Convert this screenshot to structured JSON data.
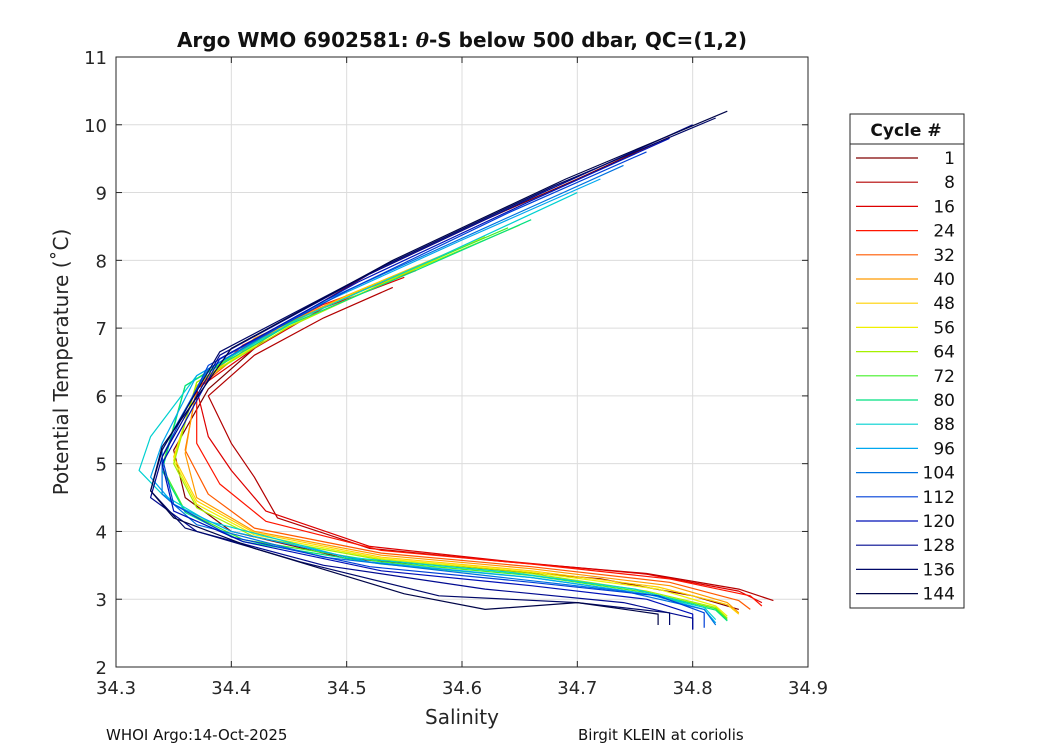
{
  "chart_data": {
    "type": "line",
    "title": "Argo WMO 6902581: θ-S below 500 dbar,  QC=(1,2)",
    "title_prefix": "Argo WMO 6902581: ",
    "title_theta": "θ",
    "title_suffix": "-S below 500 dbar,  QC=(1,2)",
    "xlabel": "Salinity",
    "ylabel": "Potential Temperature (˚C)",
    "xlim": [
      34.3,
      34.9
    ],
    "ylim": [
      2,
      11
    ],
    "xticks": [
      34.3,
      34.4,
      34.5,
      34.6,
      34.7,
      34.8,
      34.9
    ],
    "xtick_labels": [
      "34.3",
      "34.4",
      "34.5",
      "34.6",
      "34.7",
      "34.8",
      "34.9"
    ],
    "yticks": [
      2,
      3,
      4,
      5,
      6,
      7,
      8,
      9,
      10,
      11
    ],
    "ytick_labels": [
      "2",
      "3",
      "4",
      "5",
      "6",
      "7",
      "8",
      "9",
      "10",
      "11"
    ],
    "grid": true,
    "legend_title": "Cycle #",
    "legend_placement": "outside-right",
    "series": [
      {
        "name": "1",
        "color": "#800000",
        "points": [
          [
            34.78,
            9.82
          ],
          [
            34.7,
            9.2
          ],
          [
            34.62,
            8.6
          ],
          [
            34.52,
            7.8
          ],
          [
            34.44,
            7.0
          ],
          [
            34.38,
            6.1
          ],
          [
            34.35,
            5.2
          ],
          [
            34.36,
            4.5
          ],
          [
            34.4,
            4.0
          ],
          [
            34.5,
            3.6
          ],
          [
            34.62,
            3.45
          ],
          [
            34.72,
            3.3
          ],
          [
            34.8,
            3.05
          ],
          [
            34.84,
            2.85
          ]
        ]
      },
      {
        "name": "8",
        "color": "#b30000",
        "points": [
          [
            34.54,
            7.6
          ],
          [
            34.48,
            7.15
          ],
          [
            34.42,
            6.6
          ],
          [
            34.38,
            6.0
          ],
          [
            34.4,
            5.3
          ],
          [
            34.42,
            4.8
          ],
          [
            34.44,
            4.2
          ],
          [
            34.52,
            3.75
          ],
          [
            34.64,
            3.55
          ],
          [
            34.76,
            3.38
          ],
          [
            34.84,
            3.15
          ],
          [
            34.87,
            2.98
          ]
        ]
      },
      {
        "name": "16",
        "color": "#dd0000",
        "points": [
          [
            34.55,
            7.75
          ],
          [
            34.48,
            7.3
          ],
          [
            34.42,
            6.7
          ],
          [
            34.37,
            6.1
          ],
          [
            34.38,
            5.4
          ],
          [
            34.4,
            4.9
          ],
          [
            34.43,
            4.3
          ],
          [
            34.52,
            3.78
          ],
          [
            34.64,
            3.56
          ],
          [
            34.76,
            3.37
          ],
          [
            34.84,
            3.12
          ],
          [
            34.86,
            2.95
          ]
        ]
      },
      {
        "name": "24",
        "color": "#ff1500",
        "points": [
          [
            34.56,
            7.85
          ],
          [
            34.48,
            7.35
          ],
          [
            34.41,
            6.75
          ],
          [
            34.37,
            6.1
          ],
          [
            34.37,
            5.3
          ],
          [
            34.39,
            4.7
          ],
          [
            34.43,
            4.15
          ],
          [
            34.53,
            3.72
          ],
          [
            34.66,
            3.52
          ],
          [
            34.78,
            3.3
          ],
          [
            34.85,
            3.05
          ],
          [
            34.86,
            2.9
          ]
        ]
      },
      {
        "name": "32",
        "color": "#ff5a00",
        "points": [
          [
            34.57,
            7.95
          ],
          [
            34.49,
            7.4
          ],
          [
            34.42,
            6.8
          ],
          [
            34.37,
            6.1
          ],
          [
            34.36,
            5.2
          ],
          [
            34.38,
            4.55
          ],
          [
            34.42,
            4.05
          ],
          [
            34.53,
            3.68
          ],
          [
            34.66,
            3.48
          ],
          [
            34.78,
            3.25
          ],
          [
            34.84,
            2.98
          ],
          [
            34.85,
            2.85
          ]
        ]
      },
      {
        "name": "40",
        "color": "#ff9a00",
        "points": [
          [
            34.58,
            8.05
          ],
          [
            34.5,
            7.48
          ],
          [
            34.42,
            6.85
          ],
          [
            34.37,
            6.15
          ],
          [
            34.36,
            5.15
          ],
          [
            34.37,
            4.5
          ],
          [
            34.42,
            4.0
          ],
          [
            34.53,
            3.65
          ],
          [
            34.66,
            3.45
          ],
          [
            34.78,
            3.2
          ],
          [
            34.83,
            2.95
          ],
          [
            34.84,
            2.8
          ]
        ]
      },
      {
        "name": "48",
        "color": "#ffd000",
        "points": [
          [
            34.6,
            8.2
          ],
          [
            34.51,
            7.55
          ],
          [
            34.43,
            6.9
          ],
          [
            34.37,
            6.15
          ],
          [
            34.35,
            5.1
          ],
          [
            34.37,
            4.45
          ],
          [
            34.42,
            3.98
          ],
          [
            34.53,
            3.62
          ],
          [
            34.66,
            3.42
          ],
          [
            34.77,
            3.18
          ],
          [
            34.83,
            2.92
          ],
          [
            34.84,
            2.78
          ]
        ]
      },
      {
        "name": "56",
        "color": "#f0f000",
        "points": [
          [
            34.62,
            8.35
          ],
          [
            34.53,
            7.65
          ],
          [
            34.44,
            6.95
          ],
          [
            34.37,
            6.2
          ],
          [
            34.35,
            5.05
          ],
          [
            34.37,
            4.4
          ],
          [
            34.42,
            3.95
          ],
          [
            34.53,
            3.6
          ],
          [
            34.66,
            3.4
          ],
          [
            34.77,
            3.15
          ],
          [
            34.82,
            2.9
          ],
          [
            34.83,
            2.75
          ]
        ]
      },
      {
        "name": "64",
        "color": "#a6f000",
        "points": [
          [
            34.65,
            8.52
          ],
          [
            34.55,
            7.8
          ],
          [
            34.45,
            7.02
          ],
          [
            34.37,
            6.2
          ],
          [
            34.35,
            5.0
          ],
          [
            34.37,
            4.35
          ],
          [
            34.42,
            3.92
          ],
          [
            34.53,
            3.58
          ],
          [
            34.66,
            3.38
          ],
          [
            34.76,
            3.12
          ],
          [
            34.82,
            2.88
          ],
          [
            34.83,
            2.72
          ]
        ]
      },
      {
        "name": "72",
        "color": "#44f028",
        "points": [
          [
            34.64,
            8.48
          ],
          [
            34.54,
            7.75
          ],
          [
            34.44,
            7.0
          ],
          [
            34.36,
            6.15
          ],
          [
            34.34,
            4.95
          ],
          [
            34.36,
            4.3
          ],
          [
            34.41,
            3.88
          ],
          [
            34.53,
            3.55
          ],
          [
            34.66,
            3.35
          ],
          [
            34.76,
            3.1
          ],
          [
            34.82,
            2.86
          ],
          [
            34.83,
            2.7
          ]
        ]
      },
      {
        "name": "80",
        "color": "#00e080",
        "points": [
          [
            34.66,
            8.6
          ],
          [
            34.56,
            7.85
          ],
          [
            34.45,
            7.05
          ],
          [
            34.36,
            6.15
          ],
          [
            34.34,
            4.9
          ],
          [
            34.36,
            4.28
          ],
          [
            34.41,
            3.85
          ],
          [
            34.53,
            3.52
          ],
          [
            34.66,
            3.32
          ],
          [
            34.76,
            3.08
          ],
          [
            34.82,
            2.84
          ],
          [
            34.83,
            2.68
          ]
        ]
      },
      {
        "name": "88",
        "color": "#00d0d0",
        "points": [
          [
            34.7,
            9.0
          ],
          [
            34.58,
            8.05
          ],
          [
            34.46,
            7.15
          ],
          [
            34.37,
            6.3
          ],
          [
            34.33,
            5.4
          ],
          [
            34.32,
            4.9
          ],
          [
            34.34,
            4.55
          ],
          [
            34.38,
            4.15
          ],
          [
            34.5,
            3.62
          ],
          [
            34.64,
            3.4
          ],
          [
            34.75,
            3.15
          ],
          [
            34.81,
            2.88
          ],
          [
            34.82,
            2.7
          ]
        ]
      },
      {
        "name": "96",
        "color": "#00a8f0",
        "points": [
          [
            34.72,
            9.2
          ],
          [
            34.6,
            8.3
          ],
          [
            34.47,
            7.3
          ],
          [
            34.37,
            6.3
          ],
          [
            34.34,
            5.3
          ],
          [
            34.33,
            4.8
          ],
          [
            34.35,
            4.4
          ],
          [
            34.4,
            4.0
          ],
          [
            34.52,
            3.55
          ],
          [
            34.66,
            3.32
          ],
          [
            34.76,
            3.08
          ],
          [
            34.81,
            2.85
          ],
          [
            34.82,
            2.65
          ]
        ]
      },
      {
        "name": "104",
        "color": "#0072e0",
        "points": [
          [
            34.74,
            9.4
          ],
          [
            34.62,
            8.48
          ],
          [
            34.48,
            7.4
          ],
          [
            34.38,
            6.4
          ],
          [
            34.34,
            5.2
          ],
          [
            34.34,
            4.55
          ],
          [
            34.37,
            4.1
          ],
          [
            34.48,
            3.62
          ],
          [
            34.62,
            3.35
          ],
          [
            34.74,
            3.12
          ],
          [
            34.81,
            2.85
          ],
          [
            34.82,
            2.62
          ]
        ]
      },
      {
        "name": "112",
        "color": "#0040d8",
        "points": [
          [
            34.76,
            9.6
          ],
          [
            34.64,
            8.7
          ],
          [
            34.5,
            7.55
          ],
          [
            34.38,
            6.45
          ],
          [
            34.34,
            5.1
          ],
          [
            34.35,
            4.4
          ],
          [
            34.4,
            3.92
          ],
          [
            34.52,
            3.48
          ],
          [
            34.66,
            3.25
          ],
          [
            34.77,
            3.05
          ],
          [
            34.81,
            2.8
          ],
          [
            34.81,
            2.58
          ]
        ]
      },
      {
        "name": "120",
        "color": "#0010b8",
        "points": [
          [
            34.78,
            9.8
          ],
          [
            34.66,
            8.88
          ],
          [
            34.51,
            7.68
          ],
          [
            34.39,
            6.55
          ],
          [
            34.34,
            5.0
          ],
          [
            34.35,
            4.3
          ],
          [
            34.41,
            3.85
          ],
          [
            34.53,
            3.42
          ],
          [
            34.66,
            3.2
          ],
          [
            34.76,
            3.0
          ],
          [
            34.8,
            2.78
          ],
          [
            34.8,
            2.56
          ]
        ]
      },
      {
        "name": "128",
        "color": "#000a90",
        "points": [
          [
            34.8,
            10.0
          ],
          [
            34.67,
            9.0
          ],
          [
            34.52,
            7.8
          ],
          [
            34.39,
            6.6
          ],
          [
            34.34,
            5.1
          ],
          [
            34.33,
            4.5
          ],
          [
            34.37,
            4.0
          ],
          [
            34.48,
            3.5
          ],
          [
            34.62,
            3.15
          ],
          [
            34.74,
            2.95
          ],
          [
            34.8,
            2.72
          ],
          [
            34.8,
            2.55
          ]
        ]
      },
      {
        "name": "136",
        "color": "#000868",
        "points": [
          [
            34.82,
            10.1
          ],
          [
            34.68,
            9.1
          ],
          [
            34.53,
            7.9
          ],
          [
            34.39,
            6.65
          ],
          [
            34.34,
            5.2
          ],
          [
            34.33,
            4.6
          ],
          [
            34.36,
            4.05
          ],
          [
            34.46,
            3.55
          ],
          [
            34.58,
            3.05
          ],
          [
            34.7,
            2.95
          ],
          [
            34.78,
            2.8
          ],
          [
            34.78,
            2.62
          ]
        ]
      },
      {
        "name": "144",
        "color": "#000548",
        "points": [
          [
            34.83,
            10.2
          ],
          [
            34.69,
            9.2
          ],
          [
            34.54,
            8.0
          ],
          [
            34.4,
            6.7
          ],
          [
            34.34,
            5.25
          ],
          [
            34.33,
            4.6
          ],
          [
            34.35,
            4.2
          ],
          [
            34.42,
            3.75
          ],
          [
            34.55,
            3.08
          ],
          [
            34.62,
            2.85
          ],
          [
            34.7,
            2.95
          ],
          [
            34.77,
            2.78
          ],
          [
            34.77,
            2.62
          ]
        ]
      }
    ]
  },
  "footer": {
    "left": "WHOI Argo:14-Oct-2025",
    "right": "Birgit KLEIN at coriolis"
  }
}
